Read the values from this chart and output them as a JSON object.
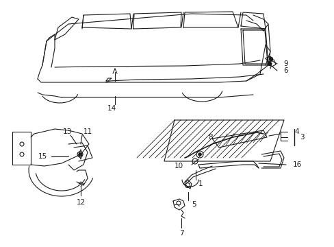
{
  "bg_color": "#ffffff",
  "line_color": "#1a1a1a",
  "figsize": [
    4.89,
    3.6
  ],
  "dpi": 100,
  "font_size": 7.5,
  "lw": 0.8
}
